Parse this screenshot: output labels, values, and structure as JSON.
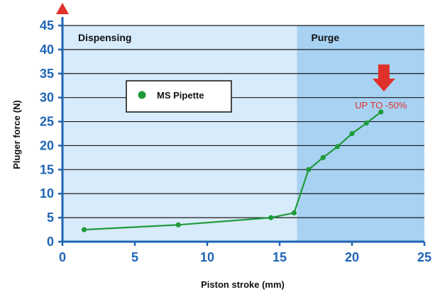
{
  "chart_data": {
    "type": "line",
    "xlabel": "Piston stroke (mm)",
    "ylabel": "Pluger force (N)",
    "xlim": [
      0,
      25
    ],
    "ylim": [
      0,
      45
    ],
    "x_ticks": [
      0,
      5,
      10,
      15,
      20,
      25
    ],
    "y_ticks": [
      0,
      5,
      10,
      15,
      20,
      25,
      30,
      35,
      40,
      45
    ],
    "grid": "horizontal",
    "regions": [
      {
        "label": "Dispensing",
        "x_start": 0,
        "x_end": 16.2,
        "color": "#d8ebfb"
      },
      {
        "label": "Purge",
        "x_start": 16.2,
        "x_end": 25,
        "color": "#a8d2f2"
      }
    ],
    "legend": {
      "placement": "upper-left",
      "entries": [
        "MS Pipette"
      ]
    },
    "series": [
      {
        "name": "MS Pipette",
        "color": "#1f9a3a",
        "x": [
          1.5,
          8,
          14.4,
          16,
          17,
          18,
          19,
          20,
          21,
          22
        ],
        "y": [
          2.5,
          3.5,
          5,
          6,
          15,
          17.5,
          19.8,
          22.5,
          24.7,
          27
        ]
      }
    ],
    "annotations": [
      {
        "text": "UP TO -50%",
        "x": 22,
        "y": 28.5,
        "color": "#e0302a",
        "arrow": "down",
        "arrow_x": 22.2,
        "arrow_y": 36
      }
    ]
  }
}
